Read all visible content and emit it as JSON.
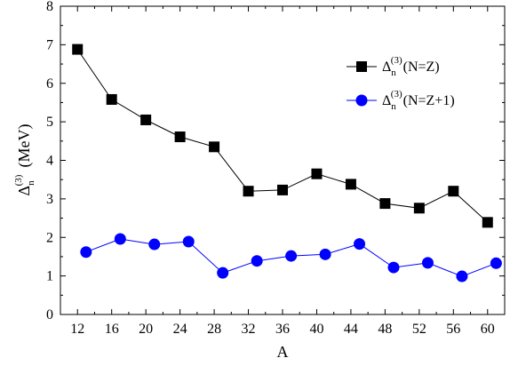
{
  "chart_data": {
    "type": "line",
    "xlabel": "A",
    "ylabel": {
      "symbol": "Δ",
      "sub": "n",
      "sup": "(3)",
      "unit": "(MeV)"
    },
    "xlim": [
      10,
      62
    ],
    "ylim": [
      0,
      8
    ],
    "xticks": [
      12,
      16,
      20,
      24,
      28,
      32,
      36,
      40,
      44,
      48,
      52,
      56,
      60
    ],
    "yticks": [
      0,
      1,
      2,
      3,
      4,
      5,
      6,
      7,
      8
    ],
    "legend_position": "top-right",
    "grid": false,
    "series": [
      {
        "name": "Δn(3)(N=Z)",
        "legend": {
          "symbol": "Δ",
          "sub": "n",
          "sup": "(3)",
          "suffix": "(N=Z)"
        },
        "marker": "square",
        "color": "#000000",
        "x": [
          12,
          16,
          20,
          24,
          28,
          32,
          36,
          40,
          44,
          48,
          52,
          56,
          60
        ],
        "y": [
          6.88,
          5.58,
          5.05,
          4.61,
          4.35,
          3.2,
          3.23,
          3.65,
          3.38,
          2.88,
          2.76,
          3.2,
          2.39
        ]
      },
      {
        "name": "Δn(3)(N=Z+1)",
        "legend": {
          "symbol": "Δ",
          "sub": "n",
          "sup": "(3)",
          "suffix": "(N=Z+1)"
        },
        "marker": "circle",
        "color": "#0000ff",
        "x": [
          13,
          17,
          21,
          25,
          29,
          33,
          37,
          41,
          45,
          49,
          53,
          57,
          61
        ],
        "y": [
          1.62,
          1.96,
          1.82,
          1.89,
          1.08,
          1.39,
          1.52,
          1.56,
          1.83,
          1.22,
          1.34,
          0.99,
          1.33
        ]
      }
    ]
  }
}
